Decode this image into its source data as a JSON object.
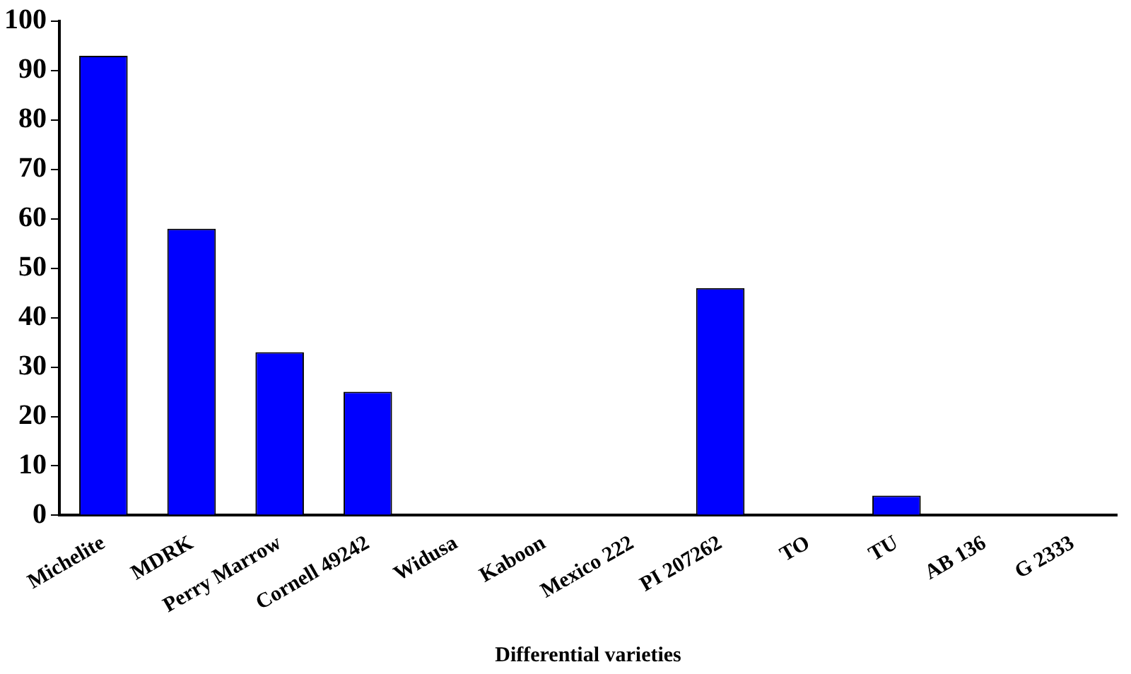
{
  "chart_data": {
    "type": "bar",
    "xlabel": "Differential varieties",
    "categories": [
      "Michelite",
      "MDRK",
      "Perry Marrow",
      "Cornell 49242",
      "Widusa",
      "Kaboon",
      "Mexico 222",
      "PI 207262",
      "TO",
      "TU",
      "AB 136",
      "G 2333"
    ],
    "values": [
      93,
      58,
      33,
      25,
      0,
      0,
      0,
      46,
      0,
      4,
      0,
      0
    ],
    "color": "#0000ff",
    "ylim": [
      0,
      100
    ],
    "yticks": [
      0,
      10,
      20,
      30,
      40,
      50,
      60,
      70,
      80,
      90,
      100
    ],
    "grid": false
  }
}
